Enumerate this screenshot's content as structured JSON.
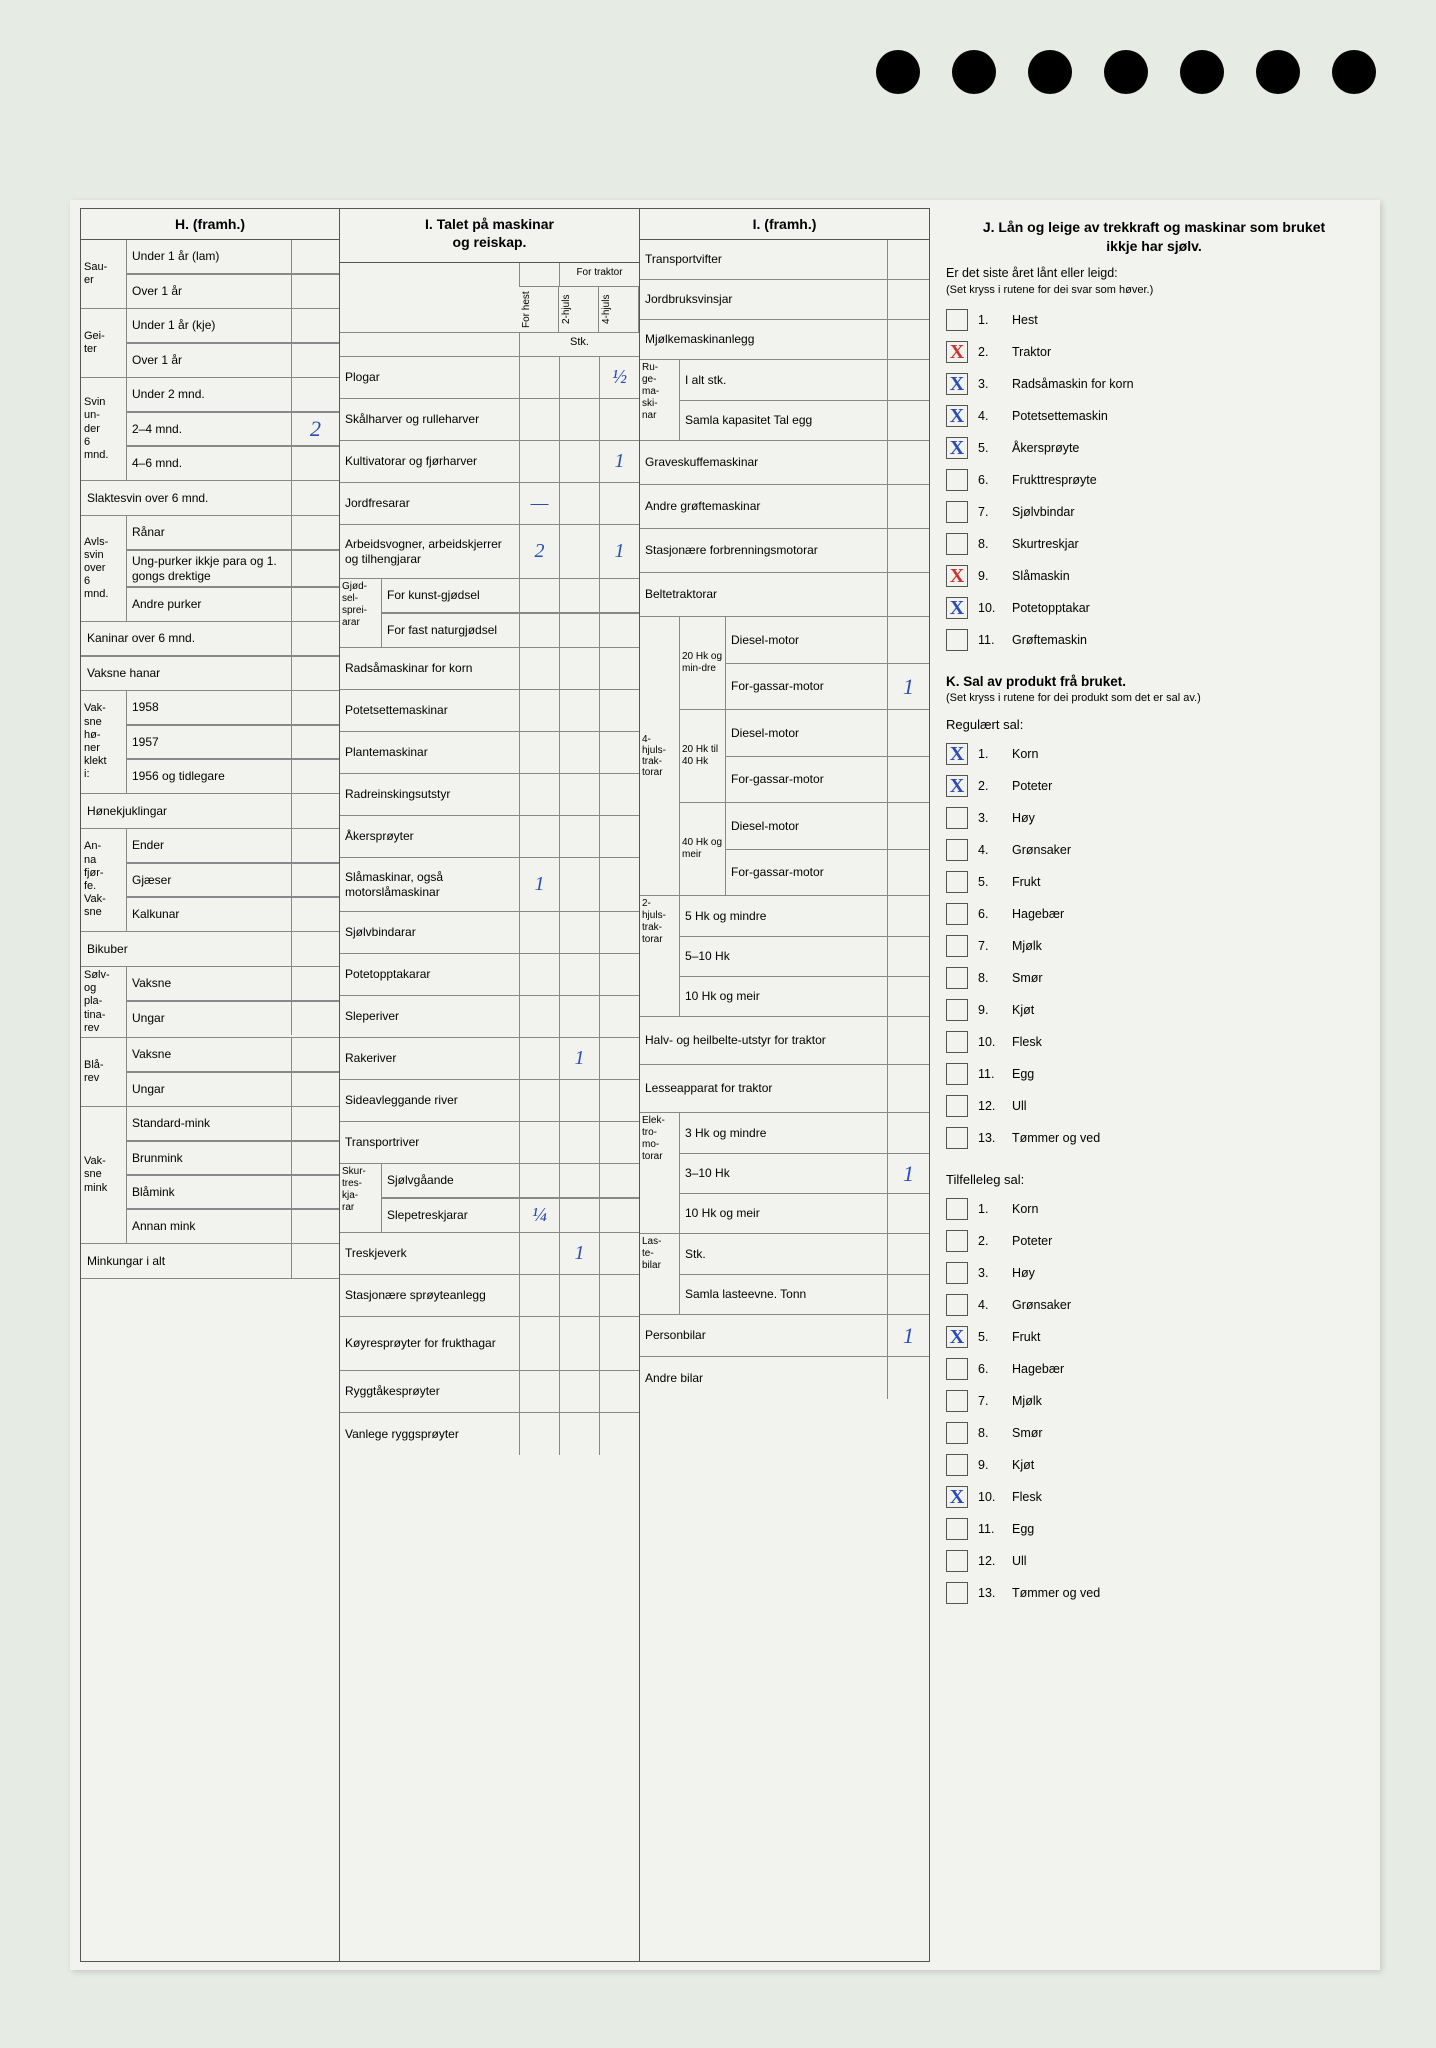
{
  "punch_holes": 7,
  "background_color": "#e6ece3",
  "paper_color": "#f2f3ee",
  "ink_color": "#2a4db5",
  "red_ink": "#c33",
  "H": {
    "header": "H. (framh.)",
    "groups": [
      {
        "stub": "Sau-\ner",
        "rows": [
          {
            "label": "Under 1 år (lam)",
            "value": ""
          },
          {
            "label": "Over 1 år",
            "value": ""
          }
        ]
      },
      {
        "stub": "Gei-\nter",
        "rows": [
          {
            "label": "Under 1 år (kje)",
            "value": ""
          },
          {
            "label": "Over 1 år",
            "value": ""
          }
        ]
      },
      {
        "stub": "Svin\nun-\nder\n6\nmnd.",
        "rows": [
          {
            "label": "Under 2 mnd.",
            "value": ""
          },
          {
            "label": "2–4 mnd.",
            "value": "2"
          },
          {
            "label": "4–6 mnd.",
            "value": ""
          }
        ]
      },
      {
        "stub": "",
        "rows": [
          {
            "label": "Slaktesvin over 6 mnd.",
            "value": "",
            "full": true
          }
        ]
      },
      {
        "stub": "Avls-\nsvin\nover\n6\nmnd.",
        "rows": [
          {
            "label": "Rånar",
            "value": ""
          },
          {
            "label": "Ung-purker ikkje para og 1. gongs drektige",
            "value": ""
          },
          {
            "label": "Andre purker",
            "value": ""
          }
        ]
      },
      {
        "stub": "",
        "rows": [
          {
            "label": "Kaninar over 6 mnd.",
            "value": "",
            "full": true
          },
          {
            "label": "Vaksne hanar",
            "value": "",
            "full": true
          }
        ]
      },
      {
        "stub": "Vak-\nsne\nhø-\nner\nklekt\ni:",
        "rows": [
          {
            "label": "1958",
            "value": ""
          },
          {
            "label": "1957",
            "value": ""
          },
          {
            "label": "1956 og tidlegare",
            "value": ""
          }
        ]
      },
      {
        "stub": "",
        "rows": [
          {
            "label": "Hønekjuklingar",
            "value": "",
            "full": true
          }
        ]
      },
      {
        "stub": "An-\nna\nfjør-\nfe.\nVak-\nsne",
        "rows": [
          {
            "label": "Ender",
            "value": ""
          },
          {
            "label": "Gjæser",
            "value": ""
          },
          {
            "label": "Kalkunar",
            "value": ""
          }
        ]
      },
      {
        "stub": "",
        "rows": [
          {
            "label": "Bikuber",
            "value": "",
            "full": true
          }
        ]
      },
      {
        "stub": "Sølv-\nog\npla-\ntina-\nrev",
        "rows": [
          {
            "label": "Vaksne",
            "value": ""
          },
          {
            "label": "Ungar",
            "value": ""
          }
        ]
      },
      {
        "stub": "Blå-\nrev",
        "rows": [
          {
            "label": "Vaksne",
            "value": ""
          },
          {
            "label": "Ungar",
            "value": ""
          }
        ]
      },
      {
        "stub": "Vak-\nsne\nmink",
        "rows": [
          {
            "label": "Standard-mink",
            "value": ""
          },
          {
            "label": "Brunmink",
            "value": ""
          },
          {
            "label": "Blåmink",
            "value": ""
          },
          {
            "label": "Annan mink",
            "value": ""
          }
        ]
      },
      {
        "stub": "",
        "rows": [
          {
            "label": "Minkungar i alt",
            "value": "",
            "full": true
          }
        ]
      }
    ]
  },
  "I": {
    "header": "I. Talet på maskinar\nog reiskap.",
    "sub_headers": {
      "for_hest": "For hest",
      "for_traktor": "For traktor",
      "h2": "2-hjuls",
      "h4": "4-hjuls",
      "stk": "Stk."
    },
    "rows": [
      {
        "label": "Plogar",
        "v": [
          "",
          "",
          "½"
        ]
      },
      {
        "label": "Skålharver og rulleharver",
        "v": [
          "",
          "",
          ""
        ]
      },
      {
        "label": "Kultivatorar og fjørharver",
        "v": [
          "",
          "",
          "1"
        ]
      },
      {
        "label": "Jordfresarar",
        "v": [
          "—",
          "",
          ""
        ]
      },
      {
        "label": "Arbeidsvogner, arbeidskjerrer og tilhengjarar",
        "v": [
          "2",
          "",
          "1"
        ]
      },
      {
        "label": "For kunst-gjødsel",
        "stub": "Gjød-\nsel-\nsprei-\narar",
        "v": [
          "",
          "",
          ""
        ]
      },
      {
        "label": "For fast naturgjødsel",
        "v": [
          "",
          "",
          ""
        ]
      },
      {
        "label": "Radsåmaskinar for korn",
        "v": [
          "",
          "",
          ""
        ]
      },
      {
        "label": "Potetsettemaskinar",
        "v": [
          "",
          "",
          ""
        ]
      },
      {
        "label": "Plantemaskinar",
        "v": [
          "",
          "",
          ""
        ]
      },
      {
        "label": "Radreinskingsutstyr",
        "v": [
          "",
          "",
          ""
        ]
      },
      {
        "label": "Åkersprøyter",
        "v": [
          "",
          "",
          ""
        ]
      },
      {
        "label": "Slåmaskinar, også motorslåmaskinar",
        "v": [
          "1",
          "",
          ""
        ]
      },
      {
        "label": "Sjølvbindarar",
        "v": [
          "",
          "",
          ""
        ]
      },
      {
        "label": "Potetopptakarar",
        "v": [
          "",
          "",
          ""
        ]
      },
      {
        "label": "Sleperiver",
        "v": [
          "",
          "",
          ""
        ]
      },
      {
        "label": "Rakeriver",
        "v": [
          "",
          "1",
          ""
        ]
      },
      {
        "label": "Sideavleggande river",
        "v": [
          "",
          "",
          ""
        ]
      },
      {
        "label": "Transportriver",
        "v": [
          "",
          "",
          ""
        ]
      },
      {
        "label": "Sjølvgåande",
        "stub": "Skur-\ntres-\nkja-\nrar",
        "v": [
          "",
          "",
          ""
        ]
      },
      {
        "label": "Slepetreskjarar",
        "v": [
          "¼",
          "",
          ""
        ]
      },
      {
        "label": "Treskjeverk",
        "v": [
          "",
          "1",
          ""
        ]
      },
      {
        "label": "Stasjonære sprøyteanlegg",
        "v": [
          "",
          "",
          ""
        ]
      },
      {
        "label": "Køyresprøyter for frukthagar",
        "v": [
          "",
          "",
          ""
        ]
      },
      {
        "label": "Ryggtåkesprøyter",
        "v": [
          "",
          "",
          ""
        ]
      },
      {
        "label": "Vanlege ryggsprøyter",
        "v": [
          "",
          "",
          ""
        ]
      }
    ]
  },
  "I2": {
    "header": "I. (framh.)",
    "rows_top": [
      {
        "label": "Transportvifter",
        "value": ""
      },
      {
        "label": "Jordbruksvinsjar",
        "value": ""
      },
      {
        "label": "Mjølkemaskinanlegg",
        "value": ""
      }
    ],
    "ruge": {
      "stub": "Ru-\nge-\nma-\nski-\nnar",
      "rows": [
        {
          "label": "I alt stk.",
          "value": ""
        },
        {
          "label": "Samla kapasitet Tal egg",
          "value": ""
        }
      ]
    },
    "rows_mid": [
      {
        "label": "Graveskuffemaskinar",
        "value": ""
      },
      {
        "label": "Andre grøftemaskinar",
        "value": ""
      },
      {
        "label": "Stasjonære forbrenningsmotorar",
        "value": ""
      },
      {
        "label": "Beltetraktorar",
        "value": ""
      }
    ],
    "hk4": {
      "stub": "4-\nhjuls-\ntrak-\ntorar",
      "groups": [
        {
          "hk": "20 Hk og min-dre",
          "rows": [
            {
              "label": "Diesel-motor",
              "value": ""
            },
            {
              "label": "For-gassar-motor",
              "value": "1"
            }
          ]
        },
        {
          "hk": "20 Hk til 40 Hk",
          "rows": [
            {
              "label": "Diesel-motor",
              "value": ""
            },
            {
              "label": "For-gassar-motor",
              "value": ""
            }
          ]
        },
        {
          "hk": "40 Hk og meir",
          "rows": [
            {
              "label": "Diesel-motor",
              "value": ""
            },
            {
              "label": "For-gassar-motor",
              "value": ""
            }
          ]
        }
      ]
    },
    "hk2": {
      "stub": "2-\nhjuls-\ntrak-\ntorar",
      "rows": [
        {
          "label": "5 Hk og mindre",
          "value": ""
        },
        {
          "label": "5–10 Hk",
          "value": ""
        },
        {
          "label": "10 Hk og meir",
          "value": ""
        }
      ]
    },
    "rows_bot": [
      {
        "label": "Halv- og heilbelte-utstyr for traktor",
        "value": ""
      },
      {
        "label": "Lesseapparat for traktor",
        "value": ""
      }
    ],
    "elektro": {
      "stub": "Elek-\ntro-\nmo-\ntorar",
      "rows": [
        {
          "label": "3 Hk og mindre",
          "value": ""
        },
        {
          "label": "3–10 Hk",
          "value": "1"
        },
        {
          "label": "10 Hk og meir",
          "value": ""
        }
      ]
    },
    "laste": {
      "stub": "Las-\nte-\nbilar",
      "rows": [
        {
          "label": "Stk.",
          "value": ""
        },
        {
          "label": "Samla lasteevne. Tonn",
          "value": ""
        }
      ]
    },
    "rows_end": [
      {
        "label": "Personbilar",
        "value": "1"
      },
      {
        "label": "Andre bilar",
        "value": ""
      }
    ]
  },
  "J": {
    "title": "J. Lån og leige av trekkraft og maskinar som bruket ikkje har sjølv.",
    "sub": "Er det siste året lånt eller leigd:",
    "note": "(Set kryss i rutene for dei svar som høver.)",
    "items": [
      {
        "n": "1.",
        "label": "Hest",
        "checked": ""
      },
      {
        "n": "2.",
        "label": "Traktor",
        "checked": "X",
        "color": "red"
      },
      {
        "n": "3.",
        "label": "Radsåmaskin for korn",
        "checked": "X",
        "color": "blue"
      },
      {
        "n": "4.",
        "label": "Potetsettemaskin",
        "checked": "X",
        "color": "blue"
      },
      {
        "n": "5.",
        "label": "Åkersprøyte",
        "checked": "X",
        "color": "blue"
      },
      {
        "n": "6.",
        "label": "Frukttresprøyte",
        "checked": ""
      },
      {
        "n": "7.",
        "label": "Sjølvbindar",
        "checked": ""
      },
      {
        "n": "8.",
        "label": "Skurtreskjar",
        "checked": ""
      },
      {
        "n": "9.",
        "label": "Slåmaskin",
        "checked": "X",
        "color": "red"
      },
      {
        "n": "10.",
        "label": "Potetopptakar",
        "checked": "X",
        "color": "blue"
      },
      {
        "n": "11.",
        "label": "Grøftemaskin",
        "checked": ""
      }
    ]
  },
  "K": {
    "title": "K. Sal av produkt frå bruket.",
    "note": "(Set kryss i rutene for dei produkt som det er sal av.)",
    "regular_header": "Regulært sal:",
    "regular": [
      {
        "n": "1.",
        "label": "Korn",
        "checked": "X"
      },
      {
        "n": "2.",
        "label": "Poteter",
        "checked": "X"
      },
      {
        "n": "3.",
        "label": "Høy",
        "checked": ""
      },
      {
        "n": "4.",
        "label": "Grønsaker",
        "checked": ""
      },
      {
        "n": "5.",
        "label": "Frukt",
        "checked": ""
      },
      {
        "n": "6.",
        "label": "Hagebær",
        "checked": ""
      },
      {
        "n": "7.",
        "label": "Mjølk",
        "checked": ""
      },
      {
        "n": "8.",
        "label": "Smør",
        "checked": ""
      },
      {
        "n": "9.",
        "label": "Kjøt",
        "checked": ""
      },
      {
        "n": "10.",
        "label": "Flesk",
        "checked": ""
      },
      {
        "n": "11.",
        "label": "Egg",
        "checked": ""
      },
      {
        "n": "12.",
        "label": "Ull",
        "checked": ""
      },
      {
        "n": "13.",
        "label": "Tømmer og ved",
        "checked": ""
      }
    ],
    "tilf_header": "Tilfelleleg sal:",
    "tilf": [
      {
        "n": "1.",
        "label": "Korn",
        "checked": ""
      },
      {
        "n": "2.",
        "label": "Poteter",
        "checked": ""
      },
      {
        "n": "3.",
        "label": "Høy",
        "checked": ""
      },
      {
        "n": "4.",
        "label": "Grønsaker",
        "checked": ""
      },
      {
        "n": "5.",
        "label": "Frukt",
        "checked": "X"
      },
      {
        "n": "6.",
        "label": "Hagebær",
        "checked": ""
      },
      {
        "n": "7.",
        "label": "Mjølk",
        "checked": ""
      },
      {
        "n": "8.",
        "label": "Smør",
        "checked": ""
      },
      {
        "n": "9.",
        "label": "Kjøt",
        "checked": ""
      },
      {
        "n": "10.",
        "label": "Flesk",
        "checked": "X"
      },
      {
        "n": "11.",
        "label": "Egg",
        "checked": ""
      },
      {
        "n": "12.",
        "label": "Ull",
        "checked": ""
      },
      {
        "n": "13.",
        "label": "Tømmer og ved",
        "checked": ""
      }
    ]
  }
}
